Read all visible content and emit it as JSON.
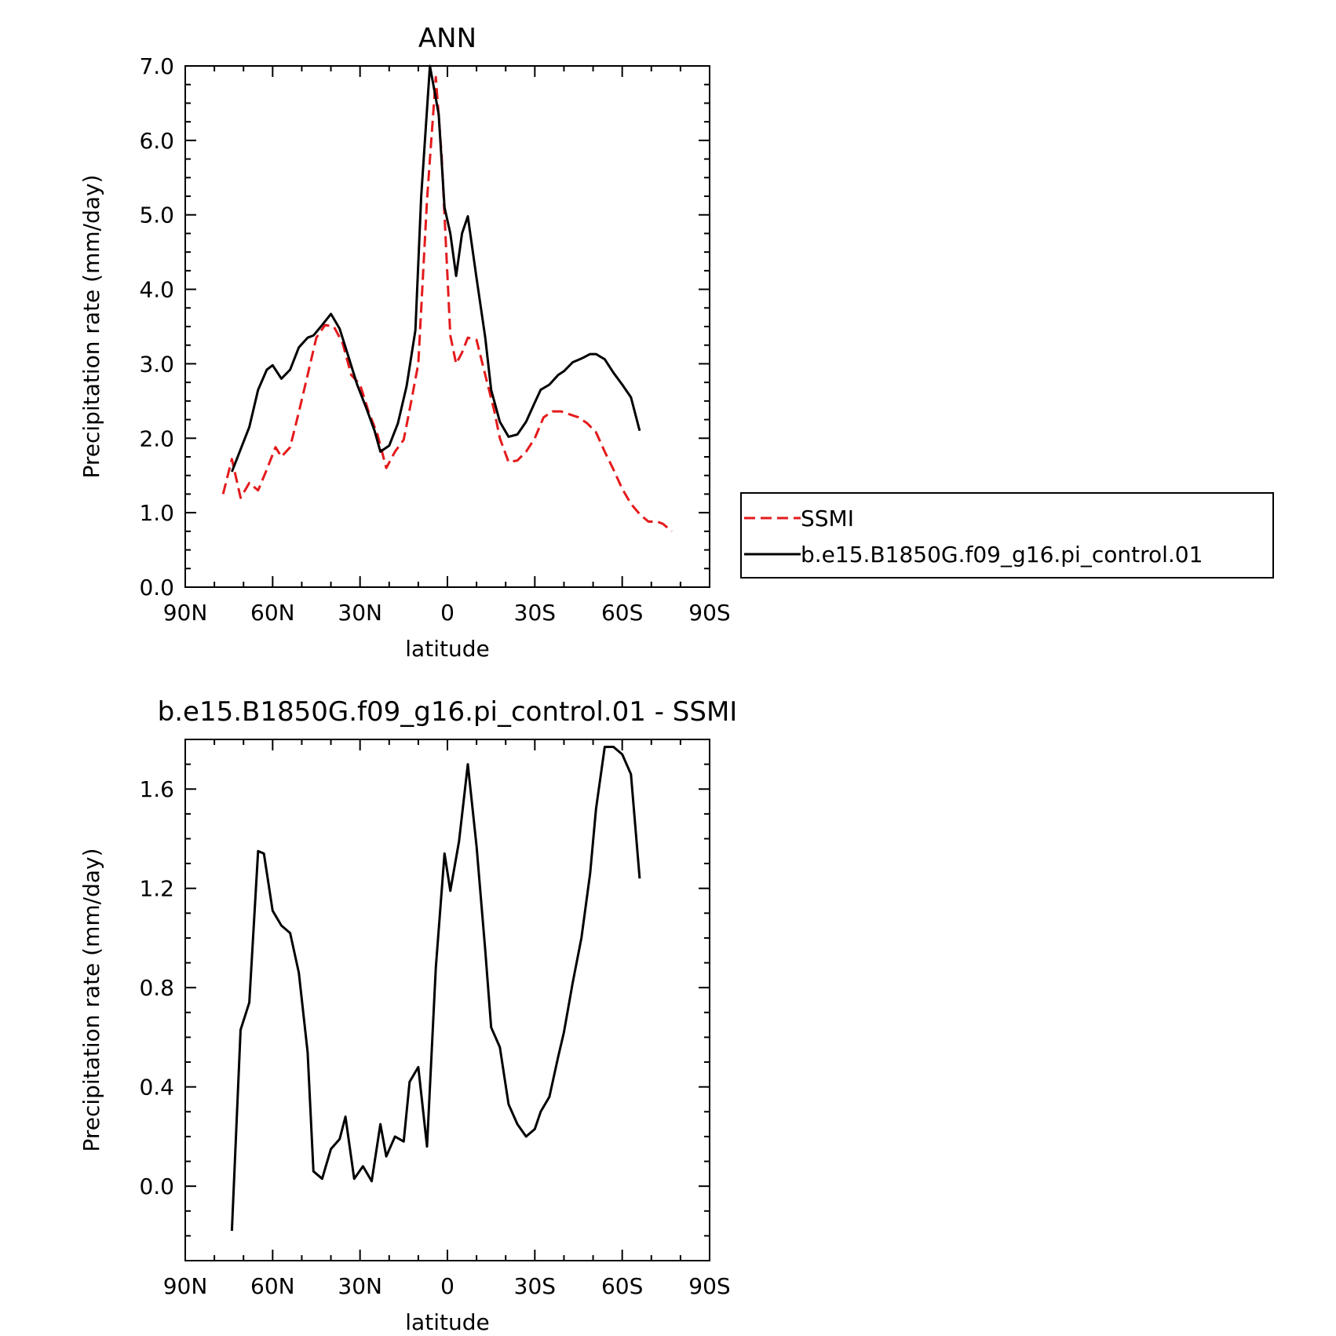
{
  "colors": {
    "axes": "#000000",
    "model": "#000000",
    "obs": "#e41a1c"
  },
  "chart_data": [
    {
      "type": "line",
      "title": "ANN",
      "xlabel": "latitude",
      "ylabel": "Precipitation rate (mm/day)",
      "xlim": [
        90,
        -90
      ],
      "ylim": [
        0,
        7
      ],
      "grid": false,
      "legend_position": "right",
      "xticks": [
        {
          "value": 90,
          "label": "90N"
        },
        {
          "value": 60,
          "label": "60N"
        },
        {
          "value": 30,
          "label": "30N"
        },
        {
          "value": 0,
          "label": "0"
        },
        {
          "value": -30,
          "label": "30S"
        },
        {
          "value": -60,
          "label": "60S"
        },
        {
          "value": -90,
          "label": "90S"
        }
      ],
      "yticks": [
        {
          "value": 0,
          "label": "0.0"
        },
        {
          "value": 1,
          "label": "1.0"
        },
        {
          "value": 2,
          "label": "2.0"
        },
        {
          "value": 3,
          "label": "3.0"
        },
        {
          "value": 4,
          "label": "4.0"
        },
        {
          "value": 5,
          "label": "5.0"
        },
        {
          "value": 6,
          "label": "6.0"
        },
        {
          "value": 7,
          "label": "7.0"
        }
      ],
      "series": [
        {
          "name": "SSMI",
          "color": "#e41a1c",
          "dash": "dashed",
          "x": [
            77,
            74,
            71,
            68,
            65,
            62,
            59,
            57,
            54,
            51,
            48,
            45,
            42,
            39,
            36,
            33,
            30,
            27,
            24,
            21,
            18,
            15,
            13,
            10,
            7,
            4,
            2,
            -1,
            -3,
            -5,
            -7,
            -10,
            -13,
            -16,
            -18,
            -21,
            -24,
            -27,
            -30,
            -33,
            -36,
            -39,
            -42,
            -45,
            -48,
            -51,
            -54,
            -57,
            -60,
            -63,
            -66,
            -69,
            -72,
            -74
          ],
          "y": [
            1.25,
            1.72,
            1.2,
            1.4,
            1.3,
            1.58,
            1.88,
            1.75,
            1.88,
            2.35,
            2.85,
            3.35,
            3.52,
            3.5,
            3.28,
            2.85,
            2.72,
            2.35,
            2.05,
            1.6,
            1.82,
            1.98,
            2.38,
            3.0,
            5.2,
            6.85,
            5.8,
            3.38,
            3.0,
            3.15,
            3.35,
            3.32,
            2.85,
            2.38,
            2.0,
            1.68,
            1.7,
            1.82,
            2.0,
            2.28,
            2.36,
            2.36,
            2.32,
            2.28,
            2.2,
            2.08,
            1.82,
            1.58,
            1.32,
            1.12,
            0.98,
            0.88,
            0.88,
            0.85
          ],
          "x_end": [
            -77
          ],
          "y_end": [
            0.75
          ]
        },
        {
          "name": "b.e15.B1850G.f09_g16.pi_control.01",
          "color": "#000000",
          "dash": "solid",
          "x": [
            74,
            71,
            68,
            65,
            62,
            60,
            57,
            54,
            51,
            48,
            46,
            43,
            40,
            37,
            34,
            31,
            28,
            25,
            23,
            20,
            17,
            14,
            11,
            9,
            6,
            3,
            1,
            -1,
            -3,
            -5,
            -7,
            -10,
            -13,
            -15,
            -18,
            -21,
            -24,
            -27,
            -30,
            -32,
            -35,
            -38,
            -40,
            -43,
            -46,
            -49,
            -51,
            -54,
            -57,
            -60,
            -63,
            -66
          ],
          "y": [
            1.55,
            1.85,
            2.15,
            2.65,
            2.92,
            2.98,
            2.8,
            2.92,
            3.22,
            3.35,
            3.38,
            3.52,
            3.67,
            3.47,
            3.1,
            2.72,
            2.42,
            2.1,
            1.82,
            1.9,
            2.2,
            2.7,
            3.45,
            5.25,
            7.0,
            6.35,
            5.1,
            4.75,
            4.18,
            4.75,
            4.98,
            4.15,
            3.35,
            2.65,
            2.22,
            2.02,
            2.05,
            2.22,
            2.48,
            2.65,
            2.72,
            2.85,
            2.9,
            3.02,
            3.07,
            3.13,
            3.13,
            3.06,
            2.88,
            2.72,
            2.55,
            2.1
          ]
        }
      ]
    },
    {
      "type": "line",
      "title": "b.e15.B1850G.f09_g16.pi_control.01 - SSMI",
      "xlabel": "latitude",
      "ylabel": "Precipitation rate (mm/day)",
      "xlim": [
        90,
        -90
      ],
      "ylim": [
        -0.3,
        1.8
      ],
      "grid": false,
      "xticks": [
        {
          "value": 90,
          "label": "90N"
        },
        {
          "value": 60,
          "label": "60N"
        },
        {
          "value": 30,
          "label": "30N"
        },
        {
          "value": 0,
          "label": "0"
        },
        {
          "value": -30,
          "label": "30S"
        },
        {
          "value": -60,
          "label": "60S"
        },
        {
          "value": -90,
          "label": "90S"
        }
      ],
      "yticks": [
        {
          "value": 0,
          "label": "0.0"
        },
        {
          "value": 0.4,
          "label": "0.4"
        },
        {
          "value": 0.8,
          "label": "0.8"
        },
        {
          "value": 1.2,
          "label": "1.2"
        },
        {
          "value": 1.6,
          "label": "1.6"
        }
      ],
      "series": [
        {
          "color": "#000000",
          "dash": "solid",
          "x": [
            74,
            71,
            68,
            65,
            63,
            60,
            57,
            54,
            51,
            48,
            46,
            43,
            40,
            37,
            35,
            32,
            29,
            26,
            23,
            21,
            18,
            15,
            13,
            10,
            7,
            4,
            1,
            -1,
            -4,
            -7,
            -10,
            -13,
            -15,
            -18,
            -21,
            -24,
            -27,
            -30,
            -32,
            -35,
            -38,
            -40,
            -43,
            -46,
            -49,
            -51,
            -54,
            -57,
            -60,
            -63,
            -66
          ],
          "y": [
            -0.18,
            0.63,
            0.74,
            1.35,
            1.34,
            1.11,
            1.05,
            1.02,
            0.86,
            0.54,
            0.06,
            0.03,
            0.15,
            0.19,
            0.28,
            0.03,
            0.08,
            0.02,
            0.25,
            0.12,
            0.2,
            0.18,
            0.42,
            0.48,
            0.16,
            0.88,
            1.34,
            1.19,
            1.39,
            1.7,
            1.37,
            0.95,
            0.64,
            0.56,
            0.33,
            0.25,
            0.2,
            0.23,
            0.3,
            0.36,
            0.52,
            0.62,
            0.82,
            1.0,
            1.26,
            1.52,
            1.77,
            1.77,
            1.74,
            1.66,
            1.24
          ]
        }
      ]
    }
  ]
}
